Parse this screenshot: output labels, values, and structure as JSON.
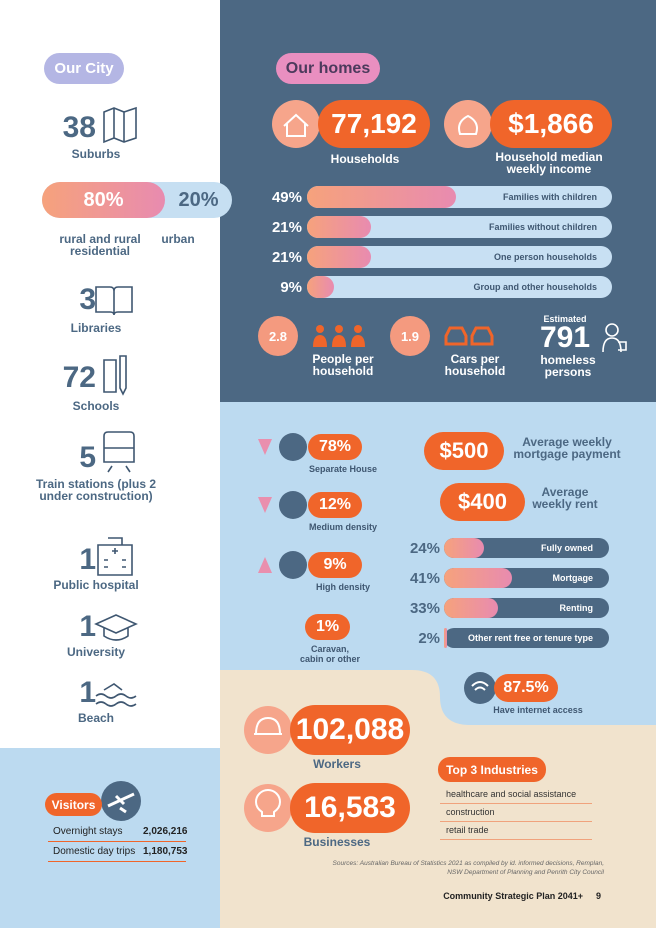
{
  "our_city": {
    "title": "Our City",
    "items": [
      {
        "value": "38",
        "label": "Suburbs"
      },
      {
        "value": "3",
        "label": "Libraries"
      },
      {
        "value": "72",
        "label": "Schools"
      },
      {
        "value": "5",
        "label": "Train stations (plus 2 under construction)"
      },
      {
        "value": "1",
        "label": "Public hospital"
      },
      {
        "value": "1",
        "label": "University"
      },
      {
        "value": "1",
        "label": "Beach"
      }
    ],
    "land_use": [
      {
        "value": "80%",
        "label": "rural and rural residential"
      },
      {
        "value": "20%",
        "label": "urban"
      }
    ]
  },
  "visitors": {
    "title": "Visitors",
    "rows": [
      [
        "Overnight stays",
        "2,026,216"
      ],
      [
        "Domestic day trips",
        "1,180,753"
      ]
    ]
  },
  "our_homes": {
    "title": "Our homes",
    "households": {
      "value": "77,192",
      "label": "Households"
    },
    "income": {
      "value": "$1,866",
      "label": "Household median weekly income"
    },
    "household_types": [
      {
        "value": "49%",
        "label": "Families with children"
      },
      {
        "value": "21%",
        "label": "Families without children"
      },
      {
        "value": "21%",
        "label": "One person households"
      },
      {
        "value": "9%",
        "label": "Group and other households"
      }
    ],
    "people": {
      "value": "2.8",
      "label": "People per household"
    },
    "cars": {
      "value": "1.9",
      "label": "Cars per household"
    },
    "homeless": {
      "prefix": "Estimated",
      "value": "791",
      "label": "homeless persons"
    }
  },
  "dwellings": [
    {
      "value": "78%",
      "label": "Separate House",
      "trend": "down"
    },
    {
      "value": "12%",
      "label": "Medium density",
      "trend": "down"
    },
    {
      "value": "9%",
      "label": "High density",
      "trend": "up"
    },
    {
      "value": "1%",
      "label": "Caravan, cabin or other"
    }
  ],
  "mortgage": {
    "value": "$500",
    "label": "Average weekly mortgage payment"
  },
  "rent": {
    "value": "$400",
    "label": "Average weekly rent"
  },
  "tenure": [
    {
      "value": "24%",
      "label": "Fully owned"
    },
    {
      "value": "41%",
      "label": "Mortgage"
    },
    {
      "value": "33%",
      "label": "Renting"
    },
    {
      "value": "2%",
      "label": "Other rent free or tenure type"
    }
  ],
  "internet": {
    "value": "87.5%",
    "label": "Have internet access"
  },
  "economy": {
    "workers": {
      "value": "102,088",
      "label": "Workers"
    },
    "businesses": {
      "value": "16,583",
      "label": "Businesses"
    },
    "industries": {
      "title": "Top 3 Industries",
      "items": [
        "healthcare and social assistance",
        "construction",
        "retail trade"
      ]
    }
  },
  "sources": "Sources: Australian Bureau of Statistics 2021 as compiled by id. informed decisions, Remplan, NSW Department of Planning and Penrith City Council",
  "footer": {
    "title": "Community Strategic Plan 2041+",
    "page": "9"
  }
}
